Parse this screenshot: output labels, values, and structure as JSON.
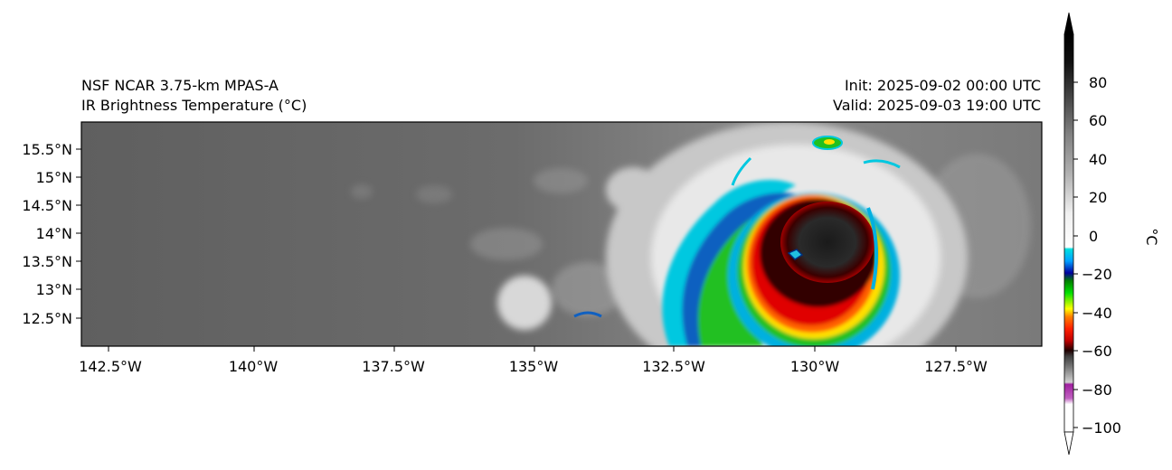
{
  "header": {
    "title_left_line1": "NSF NCAR 3.75-km MPAS-A",
    "title_left_line2": "IR Brightness Temperature (°C)",
    "title_right_line1": "Init: 2025-09-02 00:00 UTC",
    "title_right_line2": "Valid: 2025-09-03 19:00 UTC"
  },
  "map": {
    "lon_ticks": [
      "142.5°W",
      "140°W",
      "137.5°W",
      "135°W",
      "132.5°W",
      "130°W",
      "127.5°W"
    ],
    "lat_ticks": [
      "15.5°N",
      "15°N",
      "14.5°N",
      "14°N",
      "13.5°N",
      "13°N",
      "12.5°N"
    ]
  },
  "colorbar": {
    "label": "°C",
    "ticks": [
      "80",
      "60",
      "40",
      "20",
      "0",
      "−20",
      "−40",
      "−60",
      "−80",
      "−100"
    ]
  }
}
